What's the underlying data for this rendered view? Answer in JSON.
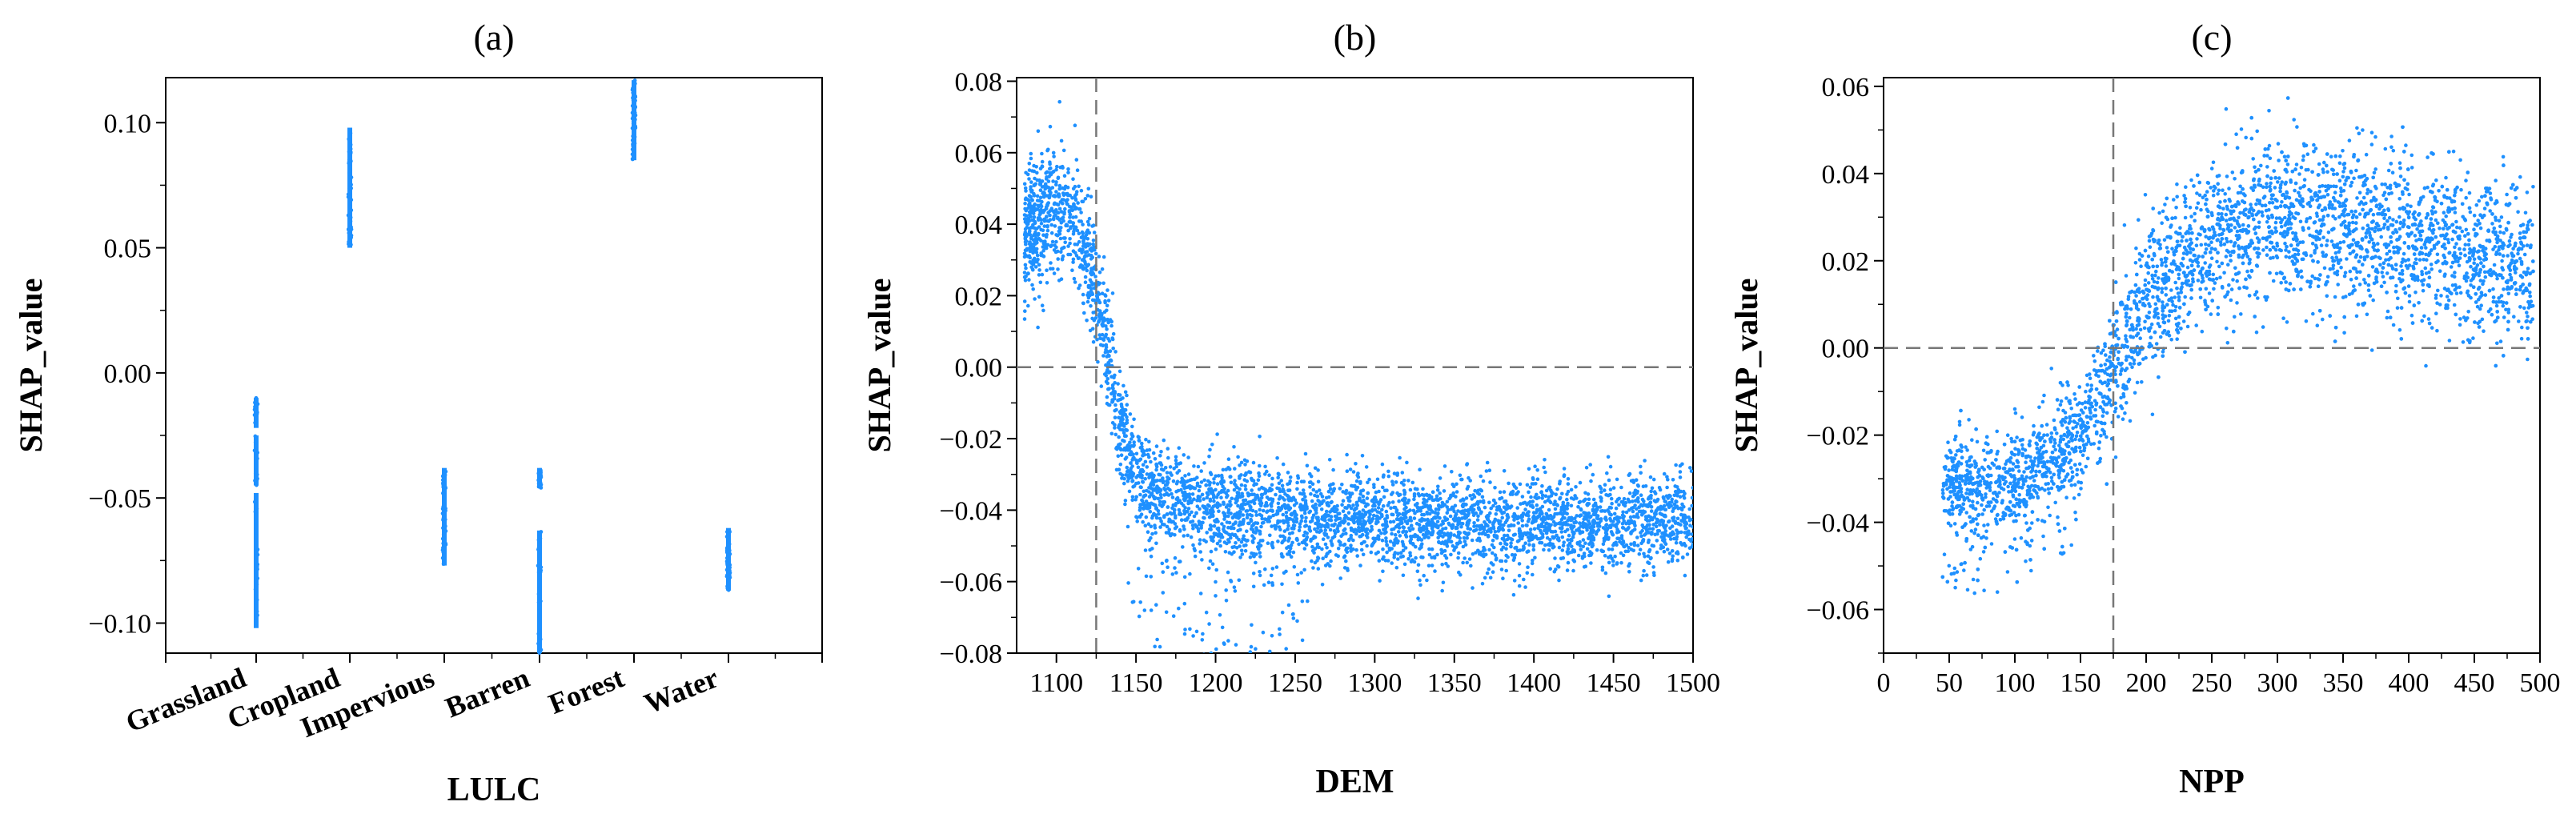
{
  "chart_data": [
    {
      "type": "scatter",
      "panel": "(a)",
      "title": "(a)",
      "xlabel": "LULC",
      "ylabel": "SHAP_value",
      "categories": [
        "Grassland",
        "Cropland",
        "Impervious",
        "Barren",
        "Forest",
        "Water"
      ],
      "ylim": [
        -0.112,
        0.118
      ],
      "yticks": [
        0.1,
        0.05,
        0.0,
        -0.05,
        -0.1
      ],
      "ytick_labels": [
        "0.10",
        "0.05",
        "0.00",
        "−0.05",
        "−0.10"
      ],
      "series": [
        {
          "name": "Grassland",
          "ranges": [
            [
              -0.102,
              -0.048
            ],
            [
              -0.045,
              -0.025
            ],
            [
              -0.022,
              -0.01
            ]
          ]
        },
        {
          "name": "Cropland",
          "ranges": [
            [
              0.05,
              0.098
            ]
          ]
        },
        {
          "name": "Impervious",
          "ranges": [
            [
              -0.077,
              -0.038
            ]
          ]
        },
        {
          "name": "Barren",
          "ranges": [
            [
              -0.112,
              -0.063
            ],
            [
              -0.046,
              -0.038
            ]
          ]
        },
        {
          "name": "Forest",
          "ranges": [
            [
              0.085,
              0.117
            ]
          ]
        },
        {
          "name": "Water",
          "ranges": [
            [
              -0.087,
              -0.062
            ]
          ]
        }
      ],
      "color": "#1E90FF",
      "grid": false
    },
    {
      "type": "scatter",
      "panel": "(b)",
      "title": "(b)",
      "xlabel": "DEM",
      "ylabel": "SHAP_value",
      "xlim": [
        1075,
        1500
      ],
      "ylim": [
        -0.08,
        0.081
      ],
      "xticks": [
        1100,
        1150,
        1200,
        1250,
        1300,
        1350,
        1400,
        1450,
        1500
      ],
      "yticks": [
        0.08,
        0.06,
        0.04,
        0.02,
        0.0,
        -0.02,
        -0.04,
        -0.06,
        -0.08
      ],
      "ytick_labels": [
        "0.08",
        "0.06",
        "0.04",
        "0.02",
        "0.00",
        "−0.02",
        "−0.04",
        "−0.06",
        "−0.08"
      ],
      "trend": [
        [
          1080,
          0.036
        ],
        [
          1095,
          0.045
        ],
        [
          1110,
          0.042
        ],
        [
          1120,
          0.03
        ],
        [
          1130,
          0.01
        ],
        [
          1140,
          -0.015
        ],
        [
          1150,
          -0.03
        ],
        [
          1160,
          -0.035
        ],
        [
          1180,
          -0.038
        ],
        [
          1200,
          -0.04
        ],
        [
          1250,
          -0.042
        ],
        [
          1300,
          -0.043
        ],
        [
          1350,
          -0.043
        ],
        [
          1400,
          -0.044
        ],
        [
          1450,
          -0.044
        ],
        [
          1500,
          -0.042
        ]
      ],
      "reference_lines": {
        "x": 1125,
        "y": 0.0
      },
      "color": "#1E90FF",
      "grid": false
    },
    {
      "type": "scatter",
      "panel": "(c)",
      "title": "(c)",
      "xlabel": "NPP",
      "ylabel": "SHAP_value",
      "xlim": [
        0,
        500
      ],
      "ylim": [
        -0.07,
        0.062
      ],
      "xticks": [
        0,
        50,
        100,
        150,
        200,
        250,
        300,
        350,
        400,
        450,
        500
      ],
      "yticks": [
        0.06,
        0.04,
        0.02,
        0.0,
        -0.02,
        -0.04,
        -0.06
      ],
      "ytick_labels": [
        "0.06",
        "0.04",
        "0.02",
        "0.00",
        "−0.02",
        "−0.04",
        "−0.06"
      ],
      "trend": [
        [
          50,
          -0.03
        ],
        [
          75,
          -0.032
        ],
        [
          100,
          -0.03
        ],
        [
          125,
          -0.025
        ],
        [
          150,
          -0.02
        ],
        [
          170,
          -0.01
        ],
        [
          180,
          0.0
        ],
        [
          200,
          0.01
        ],
        [
          220,
          0.018
        ],
        [
          250,
          0.025
        ],
        [
          300,
          0.03
        ],
        [
          330,
          0.03
        ],
        [
          350,
          0.028
        ],
        [
          400,
          0.024
        ],
        [
          450,
          0.021
        ],
        [
          490,
          0.018
        ]
      ],
      "reference_lines": {
        "x": 175,
        "y": 0.0
      },
      "color": "#1E90FF",
      "grid": false
    }
  ]
}
